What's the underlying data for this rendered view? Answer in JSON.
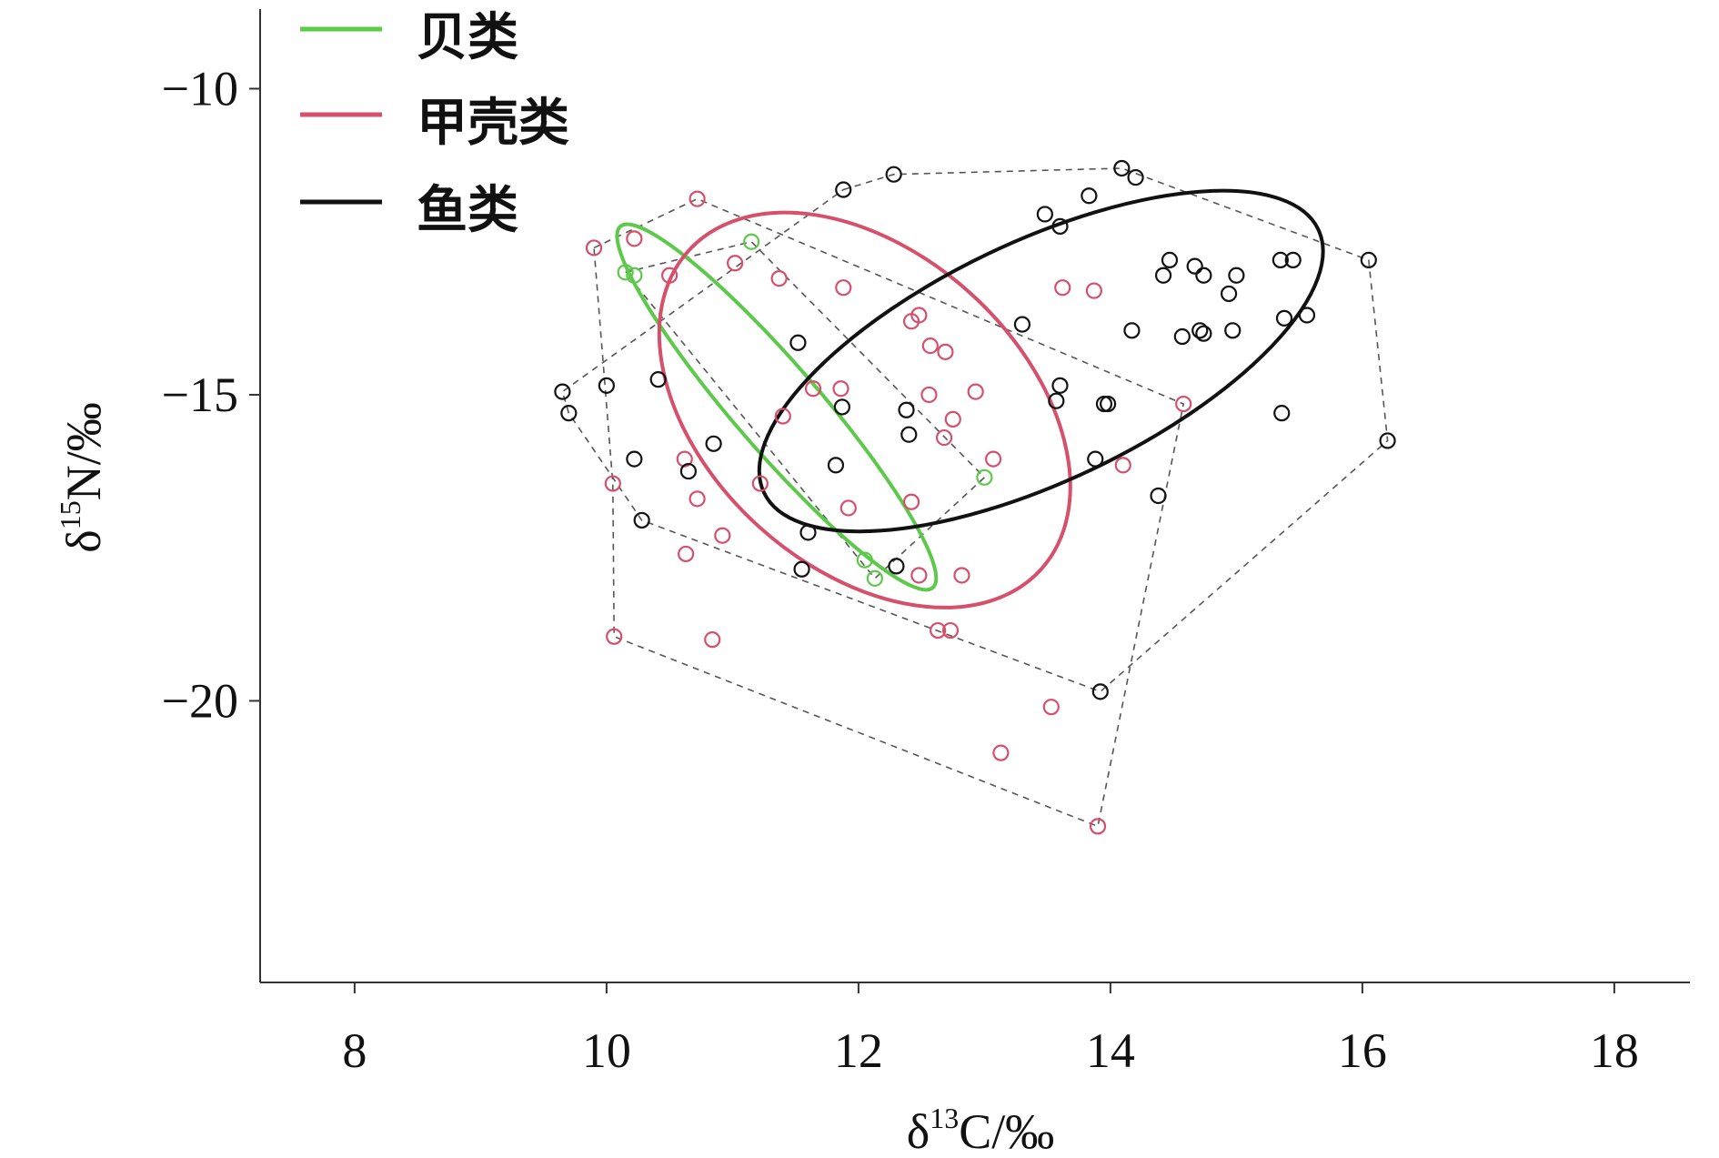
{
  "chart_data": {
    "type": "scatter",
    "xlabel": "δ13C/‰",
    "xlabel_parts": {
      "prefix": "δ",
      "sup": "13",
      "rest": "C/‰"
    },
    "ylabel": "δ15N/‰",
    "ylabel_parts": {
      "prefix": "δ",
      "sup": "15",
      "rest": "N/‰"
    },
    "xlim": [
      7.25,
      18.6
    ],
    "ylim": [
      -24.6,
      -8.7
    ],
    "x_ticks": [
      8,
      10,
      12,
      14,
      16,
      18
    ],
    "x_tick_labels": [
      "8",
      "10",
      "12",
      "14",
      "16",
      "18"
    ],
    "y_ticks": [
      -10,
      -15,
      -20
    ],
    "y_tick_labels": [
      "−10",
      "−15",
      "−20"
    ],
    "legend_position": "top-left",
    "series": [
      {
        "name": "贝类",
        "color": "#5cc94a",
        "points": [
          [
            10.15,
            -13.0
          ],
          [
            10.22,
            -13.05
          ],
          [
            11.15,
            -12.5
          ],
          [
            12.05,
            -17.7
          ],
          [
            12.13,
            -18.0
          ],
          [
            13.0,
            -16.35
          ]
        ],
        "hull": [
          [
            10.15,
            -13.0
          ],
          [
            11.15,
            -12.5
          ],
          [
            13.0,
            -16.35
          ],
          [
            12.13,
            -18.0
          ]
        ],
        "ellipse": {
          "cx": 11.35,
          "cy": -15.2,
          "major_from": [
            10.11,
            -12.25
          ],
          "major_to": [
            12.59,
            -18.15
          ],
          "minor_half": 0.34
        }
      },
      {
        "name": "甲壳类",
        "color": "#d64f6b",
        "points": [
          [
            9.9,
            -12.6
          ],
          [
            10.22,
            -12.45
          ],
          [
            10.72,
            -11.8
          ],
          [
            10.5,
            -13.05
          ],
          [
            11.02,
            -12.85
          ],
          [
            11.37,
            -13.1
          ],
          [
            11.88,
            -13.25
          ],
          [
            12.48,
            -13.7
          ],
          [
            12.42,
            -13.8
          ],
          [
            12.57,
            -14.2
          ],
          [
            12.69,
            -14.3
          ],
          [
            11.64,
            -14.9
          ],
          [
            11.86,
            -14.9
          ],
          [
            12.56,
            -15.0
          ],
          [
            12.93,
            -14.95
          ],
          [
            13.62,
            -13.25
          ],
          [
            13.87,
            -13.3
          ],
          [
            11.4,
            -15.35
          ],
          [
            12.75,
            -15.4
          ],
          [
            12.68,
            -15.7
          ],
          [
            13.07,
            -16.05
          ],
          [
            14.1,
            -16.15
          ],
          [
            14.58,
            -15.15
          ],
          [
            10.62,
            -16.05
          ],
          [
            10.05,
            -16.45
          ],
          [
            11.22,
            -16.45
          ],
          [
            10.72,
            -16.7
          ],
          [
            12.42,
            -16.75
          ],
          [
            11.92,
            -16.85
          ],
          [
            10.63,
            -17.6
          ],
          [
            10.92,
            -17.3
          ],
          [
            12.48,
            -17.95
          ],
          [
            12.82,
            -17.95
          ],
          [
            12.63,
            -18.85
          ],
          [
            12.73,
            -18.85
          ],
          [
            10.06,
            -18.95
          ],
          [
            10.84,
            -19.0
          ],
          [
            13.53,
            -20.1
          ],
          [
            13.13,
            -20.85
          ],
          [
            13.9,
            -22.05
          ]
        ],
        "hull": [
          [
            9.9,
            -12.6
          ],
          [
            10.72,
            -11.8
          ],
          [
            14.58,
            -15.15
          ],
          [
            13.9,
            -22.05
          ],
          [
            10.06,
            -18.95
          ],
          [
            10.05,
            -16.45
          ]
        ],
        "ellipse": {
          "cx": 12.05,
          "cy": -15.25,
          "major_from": [
            10.65,
            -12.65
          ],
          "major_to": [
            13.45,
            -17.85
          ],
          "minor_half": 1.25
        }
      },
      {
        "name": "鱼类",
        "color": "#111111",
        "points": [
          [
            11.88,
            -11.65
          ],
          [
            12.28,
            -11.4
          ],
          [
            14.09,
            -11.3
          ],
          [
            14.2,
            -11.45
          ],
          [
            13.83,
            -11.75
          ],
          [
            13.48,
            -12.05
          ],
          [
            13.6,
            -12.25
          ],
          [
            14.47,
            -12.8
          ],
          [
            14.42,
            -13.05
          ],
          [
            14.67,
            -12.9
          ],
          [
            14.74,
            -13.05
          ],
          [
            15.0,
            -13.05
          ],
          [
            15.35,
            -12.8
          ],
          [
            15.45,
            -12.8
          ],
          [
            16.05,
            -12.8
          ],
          [
            14.94,
            -13.35
          ],
          [
            15.38,
            -13.75
          ],
          [
            15.56,
            -13.7
          ],
          [
            14.97,
            -13.95
          ],
          [
            14.17,
            -13.95
          ],
          [
            14.57,
            -14.05
          ],
          [
            14.71,
            -13.95
          ],
          [
            14.74,
            -14.0
          ],
          [
            13.3,
            -13.85
          ],
          [
            11.52,
            -14.15
          ],
          [
            13.6,
            -14.85
          ],
          [
            13.57,
            -15.1
          ],
          [
            13.95,
            -15.15
          ],
          [
            13.98,
            -15.15
          ],
          [
            15.36,
            -15.3
          ],
          [
            16.2,
            -15.75
          ],
          [
            12.38,
            -15.25
          ],
          [
            12.4,
            -15.65
          ],
          [
            9.65,
            -14.95
          ],
          [
            9.7,
            -15.3
          ],
          [
            10.0,
            -14.85
          ],
          [
            10.41,
            -14.75
          ],
          [
            10.85,
            -15.8
          ],
          [
            11.87,
            -15.2
          ],
          [
            10.22,
            -16.05
          ],
          [
            10.65,
            -16.25
          ],
          [
            11.82,
            -16.15
          ],
          [
            13.88,
            -16.05
          ],
          [
            14.38,
            -16.65
          ],
          [
            11.6,
            -17.25
          ],
          [
            11.55,
            -17.85
          ],
          [
            12.3,
            -17.8
          ],
          [
            10.28,
            -17.05
          ],
          [
            13.92,
            -19.85
          ]
        ],
        "hull": [
          [
            11.88,
            -11.65
          ],
          [
            12.28,
            -11.4
          ],
          [
            14.09,
            -11.3
          ],
          [
            16.05,
            -12.8
          ],
          [
            16.2,
            -15.75
          ],
          [
            13.92,
            -19.85
          ],
          [
            10.28,
            -17.05
          ],
          [
            9.7,
            -15.3
          ],
          [
            9.65,
            -14.95
          ]
        ],
        "ellipse": {
          "cx": 13.45,
          "cy": -14.45,
          "major_from": [
            11.25,
            -16.6
          ],
          "major_to": [
            15.65,
            -12.3
          ],
          "minor_half": 0.95
        }
      }
    ]
  }
}
